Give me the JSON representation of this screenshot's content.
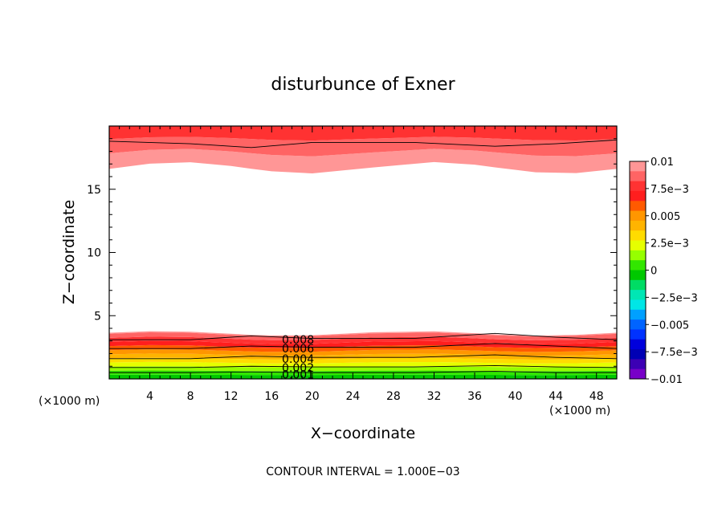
{
  "chart_data": {
    "type": "contour",
    "title": "disturbunce of Exner",
    "xlabel": "X−coordinate",
    "ylabel": "Z−coordinate",
    "x_unit": "(×1000 m)",
    "x_unit_right": "(×1000 m)",
    "xlim": [
      0,
      50
    ],
    "ylim": [
      0,
      20
    ],
    "x_ticks": [
      4,
      8,
      12,
      16,
      20,
      24,
      28,
      32,
      36,
      40,
      44,
      48
    ],
    "y_ticks": [
      5,
      10,
      15
    ],
    "footnote": "CONTOUR INTERVAL = 1.000E−03",
    "contour_interval": 0.001,
    "colorbar": {
      "labels": [
        "0.01",
        "7.5e−3",
        "0.005",
        "2.5e−3",
        "0",
        "−2.5e−3",
        "−0.005",
        "−7.5e−3",
        "−0.01"
      ],
      "colors_top_to_bottom": [
        "#ff9696",
        "#ff6464",
        "#ff3232",
        "#ff1e1e",
        "#ff5a00",
        "#ff9600",
        "#ffb400",
        "#ffdc00",
        "#e6ff00",
        "#96ff00",
        "#32e600",
        "#00c800",
        "#00dc64",
        "#00e6b4",
        "#00e6e6",
        "#00a0ff",
        "#0064ff",
        "#0032ff",
        "#0000dc",
        "#0000b4",
        "#3c00b4",
        "#7800c8"
      ]
    },
    "contour_labels": [
      "0.008",
      "0.006",
      "0.004",
      "0.002",
      "0.001"
    ],
    "series": [
      {
        "level": 0.008,
        "x": [
          0,
          8,
          14,
          20,
          30,
          38,
          44,
          50
        ],
        "y": [
          3.1,
          3.1,
          3.4,
          3.2,
          3.2,
          3.6,
          3.3,
          3.1
        ]
      },
      {
        "level": 0.006,
        "x": [
          0,
          8,
          14,
          20,
          30,
          38,
          44,
          50
        ],
        "y": [
          2.4,
          2.4,
          2.6,
          2.5,
          2.5,
          2.8,
          2.6,
          2.4
        ]
      },
      {
        "level": 0.004,
        "x": [
          0,
          8,
          14,
          20,
          30,
          38,
          44,
          50
        ],
        "y": [
          1.6,
          1.6,
          1.8,
          1.7,
          1.7,
          1.9,
          1.7,
          1.6
        ]
      },
      {
        "level": 0.002,
        "x": [
          0,
          8,
          14,
          20,
          30,
          38,
          44,
          50
        ],
        "y": [
          0.9,
          0.9,
          1.0,
          0.95,
          0.95,
          1.05,
          0.95,
          0.9
        ]
      },
      {
        "level": 0.001,
        "x": [
          0,
          8,
          14,
          20,
          30,
          38,
          44,
          50
        ],
        "y": [
          0.5,
          0.5,
          0.55,
          0.5,
          0.5,
          0.6,
          0.5,
          0.5
        ]
      },
      {
        "level": 0.009,
        "x": [
          0,
          8,
          14,
          20,
          30,
          38,
          44,
          50
        ],
        "y": [
          18.8,
          18.6,
          18.3,
          18.7,
          18.7,
          18.4,
          18.6,
          18.9
        ]
      }
    ]
  }
}
